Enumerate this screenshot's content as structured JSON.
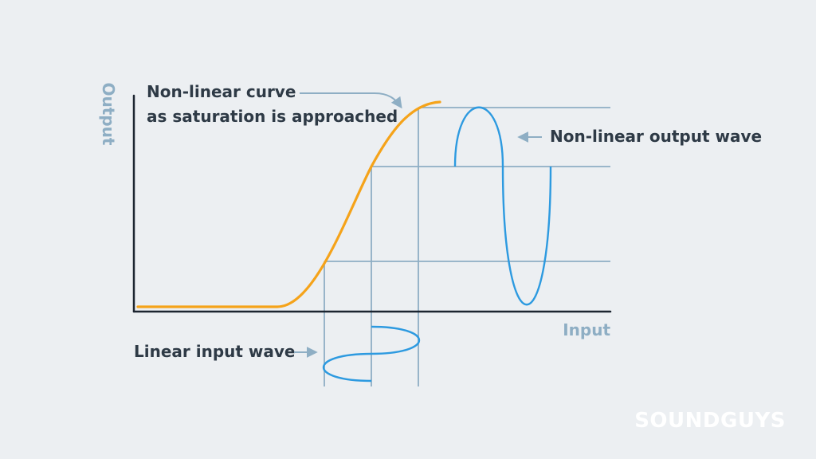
{
  "colors": {
    "background": "#eceff2",
    "axis": "#1c2530",
    "curve": "#f5a31a",
    "wave": "#2d9ae0",
    "guide": "#8eaec4",
    "text": "#2e3a46",
    "watermark": "#ffffff"
  },
  "axes": {
    "y_label": "Output",
    "x_label": "Input"
  },
  "annotations": {
    "curve_label_line1": "Non-linear curve",
    "curve_label_line2": "as saturation is approached",
    "output_wave_label": "Non-linear output wave",
    "input_wave_label": "Linear input wave"
  },
  "watermark": "SOUNDGUYS",
  "icons": [
    "arrow-right-icon",
    "arrow-left-icon",
    "curved-arrow-icon"
  ]
}
